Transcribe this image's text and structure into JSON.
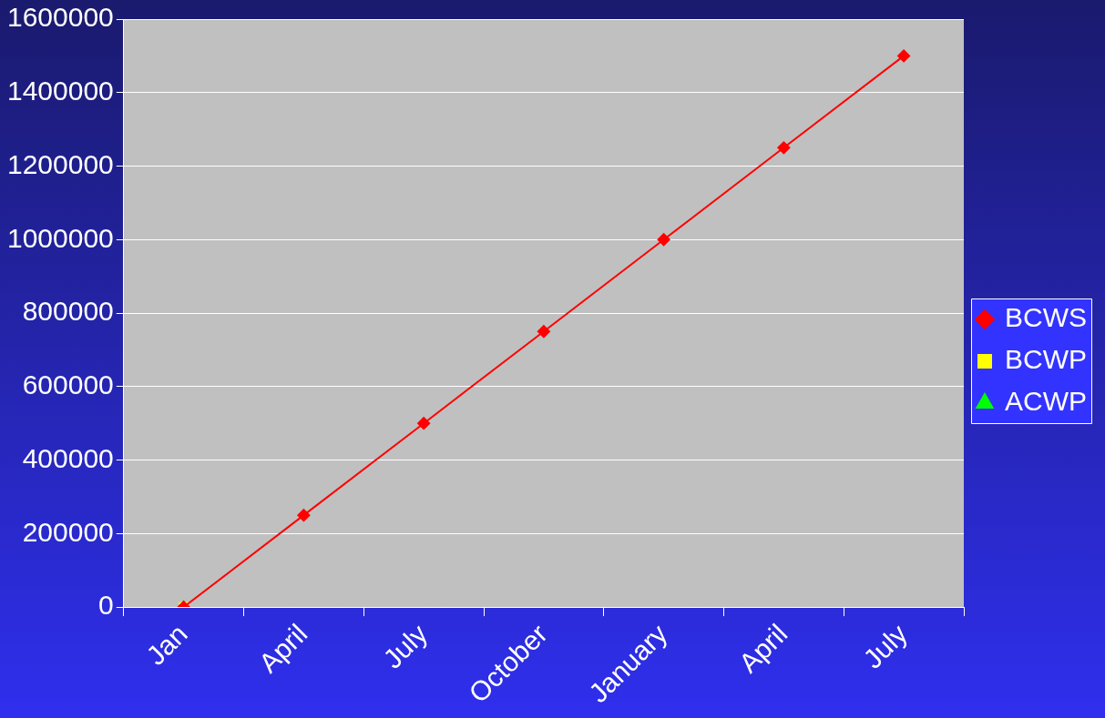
{
  "chart_data": {
    "type": "line",
    "categories": [
      "Jan",
      "April",
      "July",
      "October",
      "January",
      "April",
      "July"
    ],
    "series": [
      {
        "name": "BCWS",
        "color": "#ff0000",
        "marker": "diamond",
        "values": [
          0,
          250000,
          500000,
          750000,
          1000000,
          1250000,
          1500000
        ]
      },
      {
        "name": "BCWP",
        "color": "#ffff00",
        "marker": "square",
        "values": [
          0,
          null,
          null,
          null,
          null,
          null,
          null
        ]
      },
      {
        "name": "ACWP",
        "color": "#00ff00",
        "marker": "triangle",
        "values": [
          0,
          null,
          null,
          null,
          null,
          null,
          null
        ]
      }
    ],
    "ylim": [
      0,
      1600000
    ],
    "yticks": [
      0,
      200000,
      400000,
      600000,
      800000,
      1000000,
      1200000,
      1400000,
      1600000
    ],
    "grid": "y",
    "legend": "right"
  }
}
